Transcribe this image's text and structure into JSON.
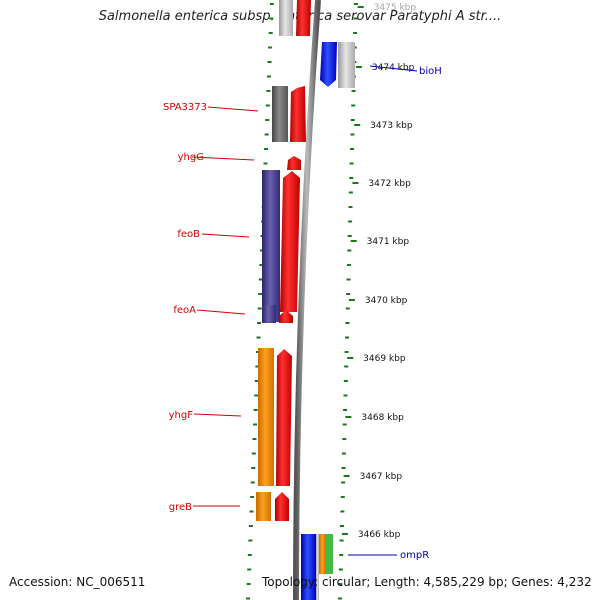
{
  "title": "Salmonella enterica subsp. enterica serovar Paratyphi A str....",
  "footer": {
    "accession": "Accession: NC_006511",
    "topology": "Topology: circular; Length: 4,585,229 bp; Genes: 4,232"
  },
  "ticks": [
    "3475 kbp",
    "3474 kbp",
    "3473 kbp",
    "3472 kbp",
    "3471 kbp",
    "3470 kbp",
    "3469 kbp",
    "3468 kbp",
    "3467 kbp",
    "3466 kbp"
  ],
  "left_genes": [
    {
      "name": "SPA3373",
      "color": "#666666"
    },
    {
      "name": "yhgG",
      "color": "#ff0000"
    },
    {
      "name": "feoB",
      "color": "#4a3f94"
    },
    {
      "name": "feoA",
      "color": "#4a3f94"
    },
    {
      "name": "yhgF",
      "color": "#f08a00"
    },
    {
      "name": "greB",
      "color": "#f08a00"
    }
  ],
  "right_genes": [
    {
      "name": "bioH",
      "color": "#0000ff"
    },
    {
      "name": "ompR",
      "color": "#0000ff"
    }
  ],
  "colors": {
    "backbone": "#7a7a7a",
    "tick_marks": "#1a7a1a",
    "cds": "#ff0000",
    "grey_gene": "#cccccc",
    "green_gene": "#44bb44"
  }
}
